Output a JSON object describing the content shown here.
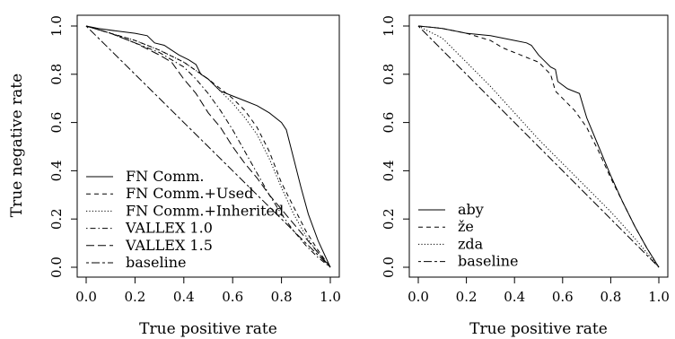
{
  "chart_data": [
    {
      "type": "line",
      "xlabel": "True positive rate",
      "ylabel": "True negative rate",
      "xlim": [
        0,
        1
      ],
      "ylim": [
        0,
        1
      ],
      "xticks": [
        "0.0",
        "0.2",
        "0.4",
        "0.6",
        "0.8",
        "1.0"
      ],
      "yticks": [
        "0.0",
        "0.2",
        "0.4",
        "0.6",
        "0.8",
        "1.0"
      ],
      "legend_position": "bottom-left",
      "series": [
        {
          "name": "FN Comm.",
          "dash": "solid",
          "points": [
            [
              0,
              1
            ],
            [
              0.05,
              0.99
            ],
            [
              0.12,
              0.98
            ],
            [
              0.2,
              0.97
            ],
            [
              0.25,
              0.96
            ],
            [
              0.28,
              0.93
            ],
            [
              0.32,
              0.92
            ],
            [
              0.35,
              0.9
            ],
            [
              0.38,
              0.88
            ],
            [
              0.42,
              0.86
            ],
            [
              0.45,
              0.84
            ],
            [
              0.47,
              0.8
            ],
            [
              0.5,
              0.78
            ],
            [
              0.53,
              0.75
            ],
            [
              0.55,
              0.73
            ],
            [
              0.6,
              0.71
            ],
            [
              0.65,
              0.69
            ],
            [
              0.7,
              0.67
            ],
            [
              0.75,
              0.64
            ],
            [
              0.8,
              0.6
            ],
            [
              0.82,
              0.57
            ],
            [
              0.85,
              0.45
            ],
            [
              0.88,
              0.33
            ],
            [
              0.91,
              0.22
            ],
            [
              0.95,
              0.11
            ],
            [
              1,
              0
            ]
          ]
        },
        {
          "name": "FN Comm.+Used",
          "dash": "dashed",
          "points": [
            [
              0,
              1
            ],
            [
              0.1,
              0.97
            ],
            [
              0.2,
              0.94
            ],
            [
              0.3,
              0.9
            ],
            [
              0.4,
              0.85
            ],
            [
              0.5,
              0.78
            ],
            [
              0.55,
              0.74
            ],
            [
              0.6,
              0.7
            ],
            [
              0.65,
              0.65
            ],
            [
              0.7,
              0.58
            ],
            [
              0.75,
              0.48
            ],
            [
              0.8,
              0.35
            ],
            [
              0.85,
              0.25
            ],
            [
              0.9,
              0.15
            ],
            [
              0.95,
              0.07
            ],
            [
              1,
              0
            ]
          ]
        },
        {
          "name": "FN Comm.+Inherited",
          "dash": "dotted",
          "points": [
            [
              0,
              1
            ],
            [
              0.1,
              0.97
            ],
            [
              0.2,
              0.94
            ],
            [
              0.3,
              0.9
            ],
            [
              0.4,
              0.85
            ],
            [
              0.5,
              0.78
            ],
            [
              0.55,
              0.73
            ],
            [
              0.6,
              0.68
            ],
            [
              0.65,
              0.62
            ],
            [
              0.7,
              0.55
            ],
            [
              0.75,
              0.45
            ],
            [
              0.8,
              0.33
            ],
            [
              0.85,
              0.22
            ],
            [
              0.9,
              0.13
            ],
            [
              0.95,
              0.06
            ],
            [
              1,
              0
            ]
          ]
        },
        {
          "name": "VALLEX 1.0",
          "dash": "dashdot",
          "points": [
            [
              0,
              1
            ],
            [
              0.1,
              0.97
            ],
            [
              0.2,
              0.93
            ],
            [
              0.3,
              0.89
            ],
            [
              0.4,
              0.83
            ],
            [
              0.45,
              0.78
            ],
            [
              0.5,
              0.72
            ],
            [
              0.55,
              0.65
            ],
            [
              0.6,
              0.57
            ],
            [
              0.65,
              0.48
            ],
            [
              0.7,
              0.39
            ],
            [
              0.75,
              0.3
            ],
            [
              0.8,
              0.22
            ],
            [
              0.85,
              0.15
            ],
            [
              0.9,
              0.09
            ],
            [
              0.95,
              0.04
            ],
            [
              1,
              0
            ]
          ]
        },
        {
          "name": "VALLEX 1.5",
          "dash": "longdash",
          "points": [
            [
              0,
              1
            ],
            [
              0.1,
              0.97
            ],
            [
              0.2,
              0.93
            ],
            [
              0.3,
              0.88
            ],
            [
              0.35,
              0.85
            ],
            [
              0.4,
              0.78
            ],
            [
              0.45,
              0.72
            ],
            [
              0.5,
              0.64
            ],
            [
              0.55,
              0.58
            ],
            [
              0.6,
              0.5
            ],
            [
              0.65,
              0.43
            ],
            [
              0.7,
              0.37
            ],
            [
              0.75,
              0.3
            ],
            [
              0.8,
              0.24
            ],
            [
              0.85,
              0.18
            ],
            [
              0.9,
              0.12
            ],
            [
              0.95,
              0.06
            ],
            [
              1,
              0
            ]
          ]
        },
        {
          "name": "baseline",
          "dash": "twodash",
          "points": [
            [
              0,
              1
            ],
            [
              1,
              0
            ]
          ]
        }
      ]
    },
    {
      "type": "line",
      "xlabel": "True positive rate",
      "ylabel": "",
      "xlim": [
        0,
        1
      ],
      "ylim": [
        0,
        1
      ],
      "xticks": [
        "0.0",
        "0.2",
        "0.4",
        "0.6",
        "0.8",
        "1.0"
      ],
      "yticks": [
        "0.0",
        "0.2",
        "0.4",
        "0.6",
        "0.8",
        "1.0"
      ],
      "legend_position": "bottom-left",
      "series": [
        {
          "name": "aby",
          "dash": "solid",
          "points": [
            [
              0,
              1
            ],
            [
              0.05,
              0.995
            ],
            [
              0.1,
              0.99
            ],
            [
              0.15,
              0.98
            ],
            [
              0.2,
              0.97
            ],
            [
              0.3,
              0.96
            ],
            [
              0.4,
              0.94
            ],
            [
              0.45,
              0.93
            ],
            [
              0.47,
              0.92
            ],
            [
              0.5,
              0.88
            ],
            [
              0.53,
              0.85
            ],
            [
              0.55,
              0.83
            ],
            [
              0.57,
              0.82
            ],
            [
              0.58,
              0.77
            ],
            [
              0.62,
              0.74
            ],
            [
              0.67,
              0.72
            ],
            [
              0.7,
              0.62
            ],
            [
              0.75,
              0.5
            ],
            [
              0.8,
              0.38
            ],
            [
              0.85,
              0.27
            ],
            [
              0.9,
              0.17
            ],
            [
              0.95,
              0.08
            ],
            [
              1,
              0
            ]
          ]
        },
        {
          "name": "že",
          "dash": "dashed",
          "points": [
            [
              0,
              1
            ],
            [
              0.1,
              0.99
            ],
            [
              0.2,
              0.97
            ],
            [
              0.3,
              0.94
            ],
            [
              0.35,
              0.91
            ],
            [
              0.4,
              0.89
            ],
            [
              0.45,
              0.87
            ],
            [
              0.5,
              0.85
            ],
            [
              0.55,
              0.8
            ],
            [
              0.57,
              0.73
            ],
            [
              0.6,
              0.7
            ],
            [
              0.65,
              0.65
            ],
            [
              0.7,
              0.58
            ],
            [
              0.75,
              0.48
            ],
            [
              0.8,
              0.37
            ],
            [
              0.85,
              0.27
            ],
            [
              0.9,
              0.17
            ],
            [
              0.95,
              0.08
            ],
            [
              1,
              0
            ]
          ]
        },
        {
          "name": "zda",
          "dash": "dotted",
          "points": [
            [
              0,
              1
            ],
            [
              0.1,
              0.95
            ],
            [
              0.2,
              0.85
            ],
            [
              0.3,
              0.75
            ],
            [
              0.4,
              0.64
            ],
            [
              0.5,
              0.53
            ],
            [
              0.6,
              0.43
            ],
            [
              0.7,
              0.33
            ],
            [
              0.8,
              0.23
            ],
            [
              0.9,
              0.12
            ],
            [
              1,
              0
            ]
          ]
        },
        {
          "name": "baseline",
          "dash": "twodash",
          "points": [
            [
              0,
              1
            ],
            [
              1,
              0
            ]
          ]
        }
      ]
    }
  ]
}
